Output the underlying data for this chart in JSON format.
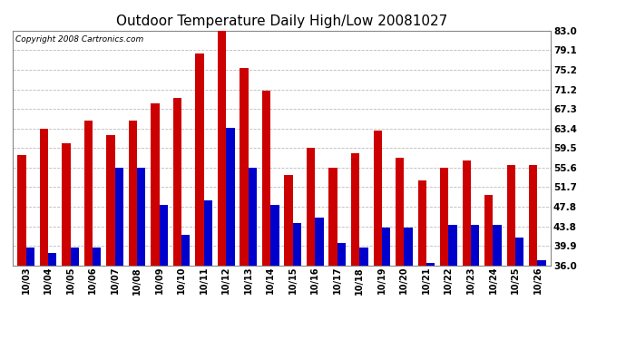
{
  "title": "Outdoor Temperature Daily High/Low 20081027",
  "copyright": "Copyright 2008 Cartronics.com",
  "dates": [
    "10/03",
    "10/04",
    "10/05",
    "10/06",
    "10/07",
    "10/08",
    "10/09",
    "10/10",
    "10/11",
    "10/12",
    "10/13",
    "10/14",
    "10/15",
    "10/16",
    "10/17",
    "10/18",
    "10/19",
    "10/20",
    "10/21",
    "10/22",
    "10/23",
    "10/24",
    "10/25",
    "10/26"
  ],
  "highs": [
    58.0,
    63.4,
    60.5,
    65.0,
    62.0,
    65.0,
    68.5,
    69.5,
    78.5,
    83.0,
    75.5,
    71.0,
    54.0,
    59.5,
    55.5,
    58.5,
    63.0,
    57.5,
    53.0,
    55.5,
    57.0,
    50.0,
    56.0,
    56.0
  ],
  "lows": [
    39.5,
    38.5,
    39.5,
    39.5,
    55.5,
    55.5,
    48.0,
    42.0,
    49.0,
    63.5,
    55.5,
    48.0,
    44.5,
    45.5,
    40.5,
    39.5,
    43.5,
    43.5,
    36.5,
    44.0,
    44.0,
    44.0,
    41.5,
    37.0
  ],
  "high_color": "#cc0000",
  "low_color": "#0000cc",
  "bg_color": "#ffffff",
  "grid_color": "#bbbbbb",
  "yticks": [
    36.0,
    39.9,
    43.8,
    47.8,
    51.7,
    55.6,
    59.5,
    63.4,
    67.3,
    71.2,
    75.2,
    79.1,
    83.0
  ],
  "ymin": 36.0,
  "ymax": 83.0,
  "bar_width": 0.38,
  "title_fontsize": 11,
  "copyright_fontsize": 6.5,
  "tick_fontsize": 7,
  "ytick_fontsize": 7.5
}
